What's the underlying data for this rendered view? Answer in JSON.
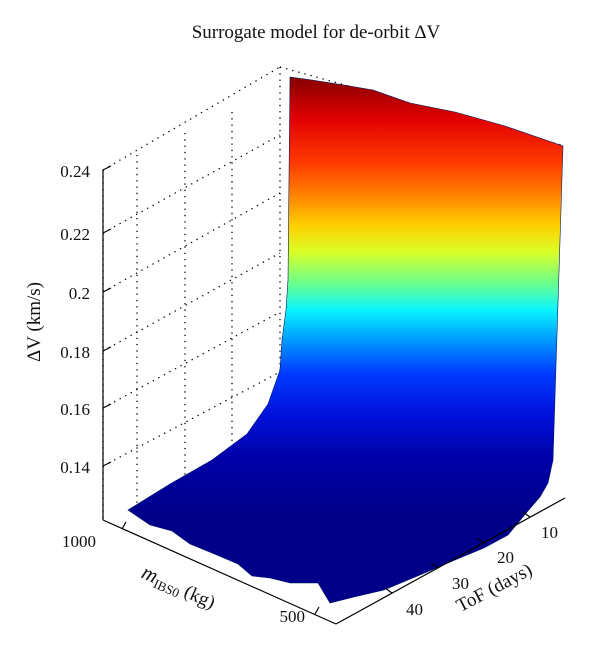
{
  "chart_data": {
    "type": "surface",
    "title": "Surrogate model for de-orbit ΔV",
    "zlabel": "ΔV (km/s)",
    "xlabel": "ToF (days)",
    "ylabel_main": "m",
    "ylabel_sub": "IBS0",
    "ylabel_unit": " (kg)",
    "z_ticks": [
      0.14,
      0.16,
      0.18,
      0.2,
      0.22,
      0.24
    ],
    "z_tick_labels": [
      "0.14",
      "0.16",
      "0.18",
      "0.2",
      "0.22",
      "0.24"
    ],
    "x_ticks": [
      10,
      20,
      30,
      40
    ],
    "x_tick_labels": [
      "10",
      "20",
      "30",
      "40"
    ],
    "y_ticks": [
      1000,
      500
    ],
    "y_tick_labels": [
      "1000",
      "500"
    ],
    "x_range": [
      1,
      45
    ],
    "y_range": [
      200,
      1100
    ],
    "z_range": [
      0.13,
      0.25
    ],
    "colormap": "jet",
    "grid": true,
    "surface_samples": [
      {
        "tof": 1,
        "mass": 300,
        "dv": 0.25
      },
      {
        "tof": 1,
        "mass": 1100,
        "dv": 0.25
      },
      {
        "tof": 5,
        "mass": 400,
        "dv": 0.18
      },
      {
        "tof": 10,
        "mass": 400,
        "dv": 0.15
      },
      {
        "tof": 20,
        "mass": 500,
        "dv": 0.135
      },
      {
        "tof": 40,
        "mass": 1000,
        "dv": 0.13
      }
    ]
  }
}
